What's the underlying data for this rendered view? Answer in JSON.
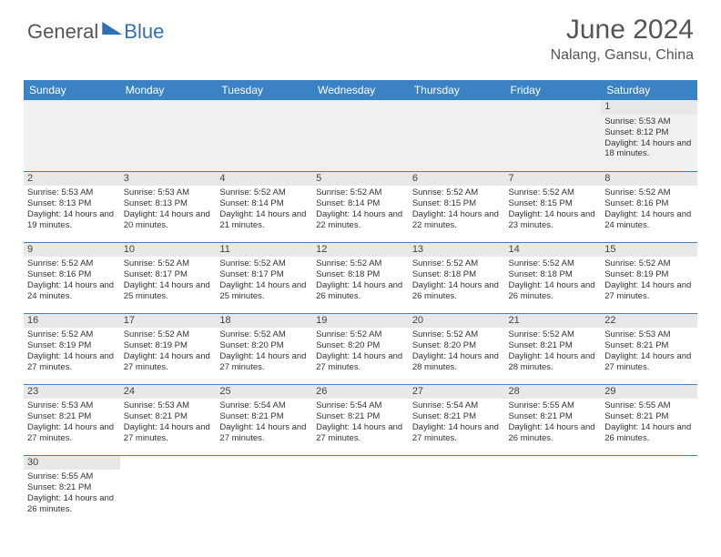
{
  "brand": {
    "part1": "General",
    "part2": "Blue"
  },
  "title": "June 2024",
  "location": "Nalang, Gansu, China",
  "colors": {
    "header_bg": "#3b82c4",
    "header_text": "#ffffff",
    "border": "#3b82c4",
    "daynum_bg": "#e8e8e8",
    "empty_bg": "#f0f0f0",
    "body_text": "#333333",
    "title_text": "#555555",
    "brand_gray": "#555555",
    "brand_blue": "#2f6fb5"
  },
  "weekdays": [
    "Sunday",
    "Monday",
    "Tuesday",
    "Wednesday",
    "Thursday",
    "Friday",
    "Saturday"
  ],
  "cells": [
    [
      "",
      "",
      "",
      "",
      "",
      "",
      {
        "n": "1",
        "sr": "5:53 AM",
        "ss": "8:12 PM",
        "dl": "14 hours and 18 minutes."
      }
    ],
    [
      {
        "n": "2",
        "sr": "5:53 AM",
        "ss": "8:13 PM",
        "dl": "14 hours and 19 minutes."
      },
      {
        "n": "3",
        "sr": "5:53 AM",
        "ss": "8:13 PM",
        "dl": "14 hours and 20 minutes."
      },
      {
        "n": "4",
        "sr": "5:52 AM",
        "ss": "8:14 PM",
        "dl": "14 hours and 21 minutes."
      },
      {
        "n": "5",
        "sr": "5:52 AM",
        "ss": "8:14 PM",
        "dl": "14 hours and 22 minutes."
      },
      {
        "n": "6",
        "sr": "5:52 AM",
        "ss": "8:15 PM",
        "dl": "14 hours and 22 minutes."
      },
      {
        "n": "7",
        "sr": "5:52 AM",
        "ss": "8:15 PM",
        "dl": "14 hours and 23 minutes."
      },
      {
        "n": "8",
        "sr": "5:52 AM",
        "ss": "8:16 PM",
        "dl": "14 hours and 24 minutes."
      }
    ],
    [
      {
        "n": "9",
        "sr": "5:52 AM",
        "ss": "8:16 PM",
        "dl": "14 hours and 24 minutes."
      },
      {
        "n": "10",
        "sr": "5:52 AM",
        "ss": "8:17 PM",
        "dl": "14 hours and 25 minutes."
      },
      {
        "n": "11",
        "sr": "5:52 AM",
        "ss": "8:17 PM",
        "dl": "14 hours and 25 minutes."
      },
      {
        "n": "12",
        "sr": "5:52 AM",
        "ss": "8:18 PM",
        "dl": "14 hours and 26 minutes."
      },
      {
        "n": "13",
        "sr": "5:52 AM",
        "ss": "8:18 PM",
        "dl": "14 hours and 26 minutes."
      },
      {
        "n": "14",
        "sr": "5:52 AM",
        "ss": "8:18 PM",
        "dl": "14 hours and 26 minutes."
      },
      {
        "n": "15",
        "sr": "5:52 AM",
        "ss": "8:19 PM",
        "dl": "14 hours and 27 minutes."
      }
    ],
    [
      {
        "n": "16",
        "sr": "5:52 AM",
        "ss": "8:19 PM",
        "dl": "14 hours and 27 minutes."
      },
      {
        "n": "17",
        "sr": "5:52 AM",
        "ss": "8:19 PM",
        "dl": "14 hours and 27 minutes."
      },
      {
        "n": "18",
        "sr": "5:52 AM",
        "ss": "8:20 PM",
        "dl": "14 hours and 27 minutes."
      },
      {
        "n": "19",
        "sr": "5:52 AM",
        "ss": "8:20 PM",
        "dl": "14 hours and 27 minutes."
      },
      {
        "n": "20",
        "sr": "5:52 AM",
        "ss": "8:20 PM",
        "dl": "14 hours and 28 minutes."
      },
      {
        "n": "21",
        "sr": "5:52 AM",
        "ss": "8:21 PM",
        "dl": "14 hours and 28 minutes."
      },
      {
        "n": "22",
        "sr": "5:53 AM",
        "ss": "8:21 PM",
        "dl": "14 hours and 27 minutes."
      }
    ],
    [
      {
        "n": "23",
        "sr": "5:53 AM",
        "ss": "8:21 PM",
        "dl": "14 hours and 27 minutes."
      },
      {
        "n": "24",
        "sr": "5:53 AM",
        "ss": "8:21 PM",
        "dl": "14 hours and 27 minutes."
      },
      {
        "n": "25",
        "sr": "5:54 AM",
        "ss": "8:21 PM",
        "dl": "14 hours and 27 minutes."
      },
      {
        "n": "26",
        "sr": "5:54 AM",
        "ss": "8:21 PM",
        "dl": "14 hours and 27 minutes."
      },
      {
        "n": "27",
        "sr": "5:54 AM",
        "ss": "8:21 PM",
        "dl": "14 hours and 27 minutes."
      },
      {
        "n": "28",
        "sr": "5:55 AM",
        "ss": "8:21 PM",
        "dl": "14 hours and 26 minutes."
      },
      {
        "n": "29",
        "sr": "5:55 AM",
        "ss": "8:21 PM",
        "dl": "14 hours and 26 minutes."
      }
    ],
    [
      {
        "n": "30",
        "sr": "5:55 AM",
        "ss": "8:21 PM",
        "dl": "14 hours and 26 minutes."
      },
      "",
      "",
      "",
      "",
      "",
      ""
    ]
  ],
  "labels": {
    "sunrise": "Sunrise: ",
    "sunset": "Sunset: ",
    "daylight": "Daylight: "
  }
}
